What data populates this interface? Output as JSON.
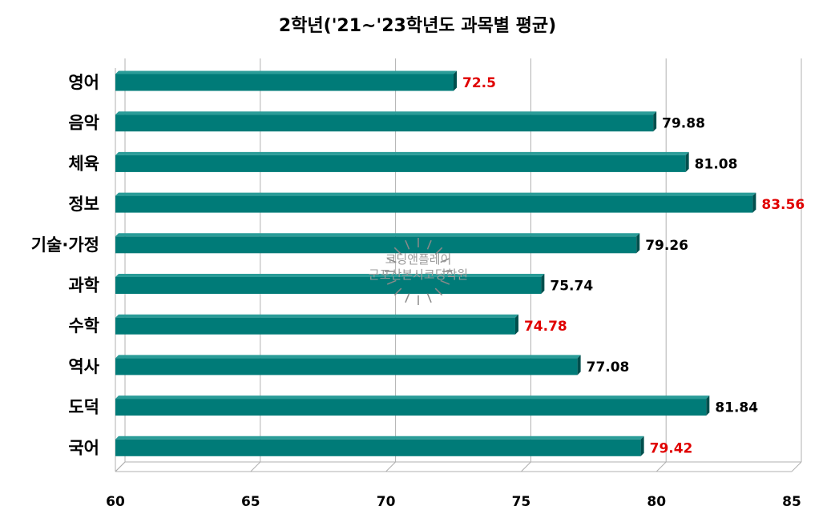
{
  "chart_data": {
    "type": "bar",
    "orientation": "horizontal",
    "title": "2학년('21~'23학년도 과목별 평균)",
    "categories": [
      "영어",
      "음악",
      "체육",
      "정보",
      "기술·가정",
      "과학",
      "수학",
      "역사",
      "도덕",
      "국어"
    ],
    "values": [
      72.5,
      79.88,
      81.08,
      83.56,
      79.26,
      75.74,
      74.78,
      77.08,
      81.84,
      79.42
    ],
    "value_labels": [
      "72.5",
      "79.88",
      "81.08",
      "83.56",
      "79.26",
      "75.74",
      "74.78",
      "77.08",
      "81.84",
      "79.42"
    ],
    "highlighted": [
      true,
      false,
      false,
      true,
      false,
      false,
      true,
      false,
      false,
      true
    ],
    "xlim": [
      60,
      85
    ],
    "xticks": [
      "60",
      "65",
      "70",
      "75",
      "80",
      "85"
    ],
    "xlabel": "",
    "ylabel": "",
    "grid": true,
    "legend": "none",
    "colors": {
      "bar": "#007b78",
      "bar_top": "#2a9c98",
      "bar_side": "#004f4d",
      "highlight_label": "#e00000",
      "normal_label": "#000000",
      "grid": "#b0b0b0"
    }
  },
  "watermark": {
    "line1": "코딩앤플레이",
    "line2": "군포산본시코딩학원"
  }
}
